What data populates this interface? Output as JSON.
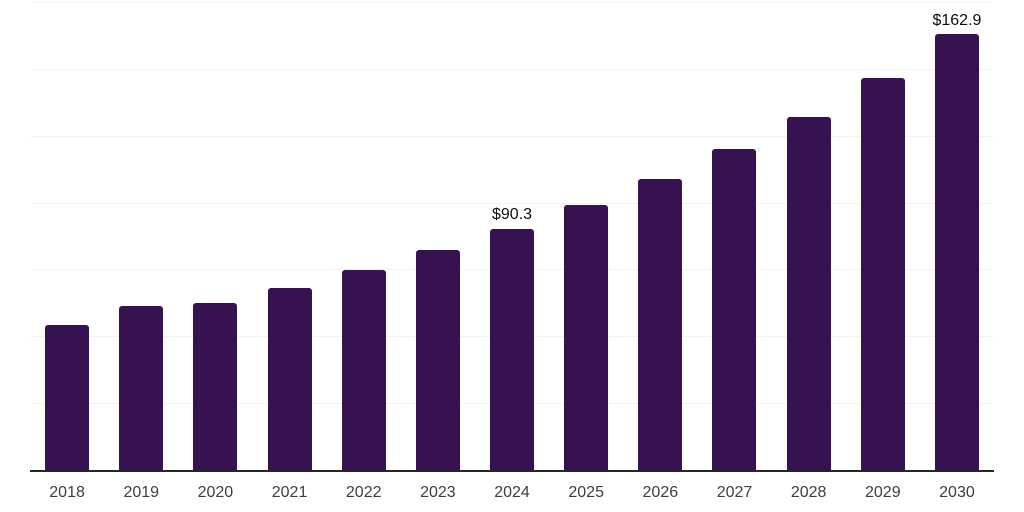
{
  "chart_data": {
    "type": "bar",
    "title": "",
    "xlabel": "",
    "ylabel": "",
    "categories": [
      "2018",
      "2019",
      "2020",
      "2021",
      "2022",
      "2023",
      "2024",
      "2025",
      "2026",
      "2027",
      "2028",
      "2029",
      "2030"
    ],
    "values": [
      54.2,
      61.3,
      62.3,
      68.1,
      74.8,
      82.3,
      90.3,
      99.1,
      108.8,
      120.1,
      132.0,
      146.5,
      162.9
    ],
    "bar_labels": [
      "",
      "",
      "",
      "",
      "",
      "",
      "$90.3",
      "",
      "",
      "",
      "",
      "",
      "$162.9"
    ],
    "ylim": [
      0,
      175
    ],
    "grid_step": 25,
    "grid": "horizontal-only",
    "legend": "none",
    "colors": {
      "bar": "#361250",
      "gridline": "#f2f2f3",
      "axis_line": "#262626",
      "tick_label": "#3d3d3d",
      "data_label": "#0d0d0d",
      "background": "#ffffff"
    }
  }
}
